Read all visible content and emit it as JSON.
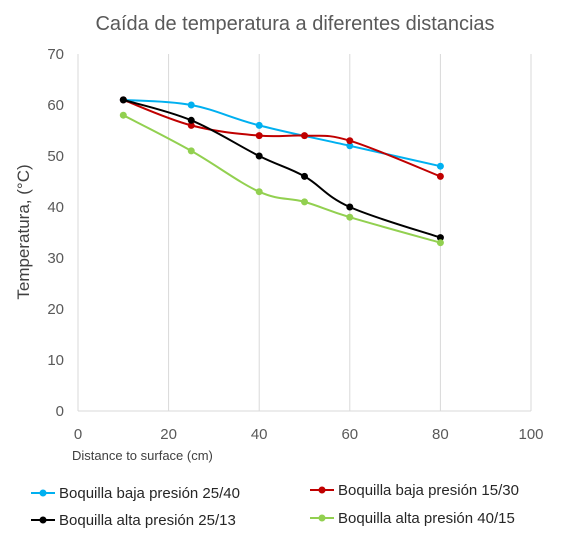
{
  "chart_data": {
    "type": "line",
    "title": "Caída de temperatura a diferentes distancias",
    "xlabel": "Distance to surface (cm)",
    "ylabel": "Temperatura, (°C)",
    "xlim": [
      0,
      100
    ],
    "ylim": [
      0,
      70
    ],
    "xticks": [
      "0",
      "20",
      "40",
      "60",
      "80",
      "100"
    ],
    "yticks": [
      "0",
      "10",
      "20",
      "30",
      "40",
      "50",
      "60",
      "70"
    ],
    "grid": "vertical",
    "legend_position": "bottom",
    "series": [
      {
        "name": "Boquilla baja presión 25/40",
        "color": "#00b0f0",
        "x": [
          10,
          25,
          40,
          60,
          80
        ],
        "y": [
          61,
          60,
          56,
          52,
          48
        ]
      },
      {
        "name": "Boquilla baja presión 15/30",
        "color": "#c00000",
        "x": [
          10,
          25,
          40,
          50,
          60,
          80
        ],
        "y": [
          61,
          56,
          54,
          54,
          53,
          46
        ]
      },
      {
        "name": "Boquilla alta presión 25/13",
        "color": "#000000",
        "x": [
          10,
          25,
          40,
          50,
          60,
          80
        ],
        "y": [
          61,
          57,
          50,
          46,
          40,
          34
        ]
      },
      {
        "name": "Boquilla alta presión 40/15",
        "color": "#92d050",
        "x": [
          10,
          25,
          40,
          50,
          60,
          80
        ],
        "y": [
          58,
          51,
          43,
          41,
          38,
          33
        ]
      }
    ]
  }
}
